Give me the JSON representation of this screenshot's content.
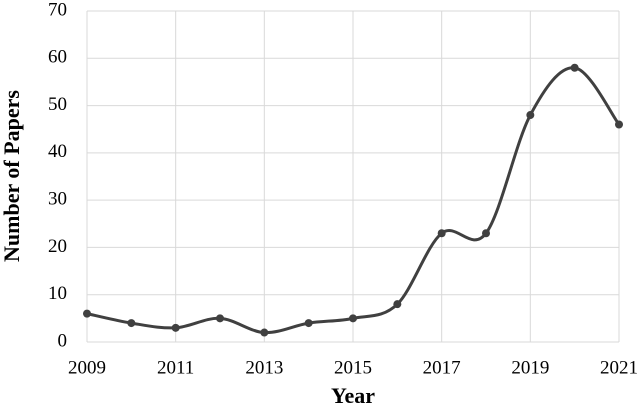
{
  "chart_data": {
    "type": "line",
    "x_label": "Year",
    "y_label": "Number of Papers",
    "x": [
      2009,
      2010,
      2011,
      2012,
      2013,
      2014,
      2015,
      2016,
      2017,
      2018,
      2019,
      2020,
      2021
    ],
    "values": [
      6,
      4,
      3,
      5,
      2,
      4,
      5,
      8,
      23,
      23,
      48,
      58,
      46
    ],
    "color": "#404040",
    "xlim": [
      2009,
      2021
    ],
    "xticks": [
      2009,
      2011,
      2013,
      2015,
      2017,
      2019,
      2021
    ],
    "ylim": [
      0,
      70
    ],
    "yticks": [
      0,
      10,
      20,
      30,
      40,
      50,
      60,
      70
    ],
    "grid": true,
    "smooth": true
  }
}
